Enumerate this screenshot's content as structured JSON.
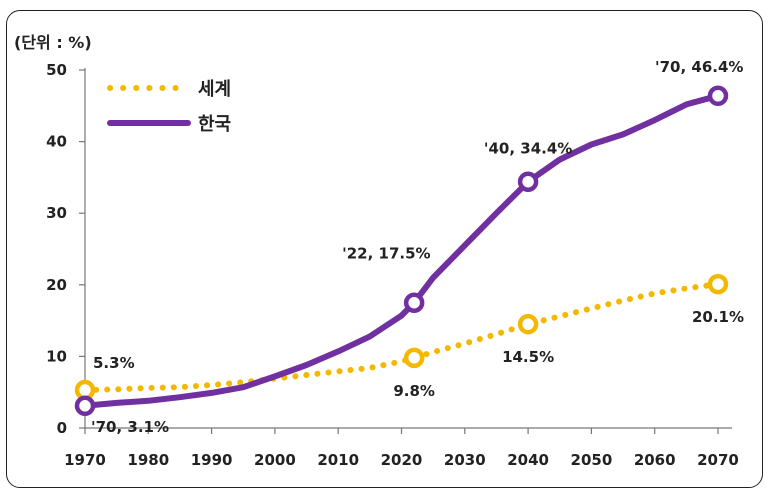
{
  "chart_data": {
    "type": "line",
    "unit_label": "(단위 : %)",
    "x": [
      1970,
      1975,
      1980,
      1985,
      1990,
      1995,
      2000,
      2005,
      2010,
      2015,
      2020,
      2022,
      2025,
      2030,
      2035,
      2040,
      2045,
      2050,
      2055,
      2060,
      2065,
      2070
    ],
    "series": [
      {
        "name": "세계",
        "style": "dotted",
        "color": "#f5b800",
        "values": [
          5.3,
          5.4,
          5.6,
          5.7,
          6.0,
          6.4,
          6.9,
          7.4,
          7.9,
          8.4,
          9.3,
          9.8,
          10.6,
          11.8,
          13.1,
          14.5,
          15.6,
          16.7,
          17.8,
          18.8,
          19.5,
          20.1
        ]
      },
      {
        "name": "한국",
        "style": "solid",
        "color": "#7030a0",
        "values": [
          3.1,
          3.5,
          3.8,
          4.3,
          4.9,
          5.7,
          7.2,
          8.8,
          10.7,
          12.8,
          15.7,
          17.5,
          21.0,
          25.5,
          30.0,
          34.4,
          37.5,
          39.6,
          41.0,
          43.0,
          45.2,
          46.4
        ]
      }
    ],
    "xticks": [
      1970,
      1980,
      1990,
      2000,
      2010,
      2020,
      2030,
      2040,
      2050,
      2060,
      2070
    ],
    "yticks": [
      0,
      10,
      20,
      30,
      40,
      50
    ],
    "ylim": [
      0,
      50
    ],
    "xlim": [
      1970,
      2070
    ],
    "legend_position": "top-left",
    "markers": [
      {
        "series": 0,
        "x": 1970,
        "y": 5.3
      },
      {
        "series": 0,
        "x": 2022,
        "y": 9.8
      },
      {
        "series": 0,
        "x": 2040,
        "y": 14.5
      },
      {
        "series": 0,
        "x": 2070,
        "y": 20.1
      },
      {
        "series": 1,
        "x": 1970,
        "y": 3.1
      },
      {
        "series": 1,
        "x": 2022,
        "y": 17.5
      },
      {
        "series": 1,
        "x": 2040,
        "y": 34.4
      },
      {
        "series": 1,
        "x": 2070,
        "y": 46.4
      }
    ],
    "annotations": [
      {
        "text": "5.3%",
        "x": 1970,
        "y": 5.3,
        "anchor": "above-right"
      },
      {
        "text": "'70, 3.1%",
        "x": 1970,
        "y": 3.1,
        "anchor": "below-right"
      },
      {
        "text": "'22, 17.5%",
        "x": 2022,
        "y": 17.5,
        "anchor": "above-left"
      },
      {
        "text": "9.8%",
        "x": 2022,
        "y": 9.8,
        "anchor": "below"
      },
      {
        "text": "'40, 34.4%",
        "x": 2040,
        "y": 34.4,
        "anchor": "above"
      },
      {
        "text": "14.5%",
        "x": 2040,
        "y": 14.5,
        "anchor": "below"
      },
      {
        "text": "'70, 46.4%",
        "x": 2070,
        "y": 46.4,
        "anchor": "above-left"
      },
      {
        "text": "20.1%",
        "x": 2070,
        "y": 20.1,
        "anchor": "below"
      }
    ]
  }
}
